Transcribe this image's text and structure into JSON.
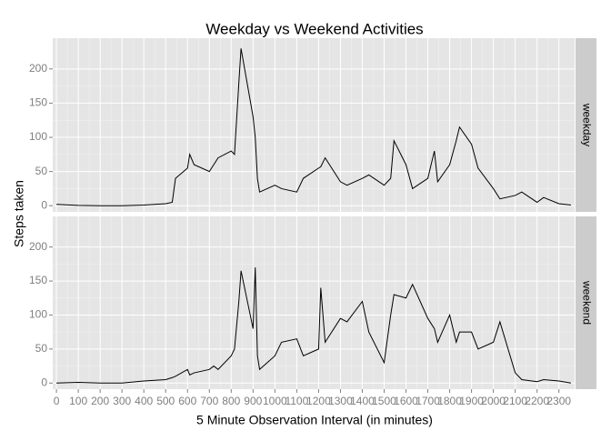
{
  "chart_data": {
    "type": "line",
    "title": "Weekday vs Weekend Activities",
    "xlabel": "5 Minute Observation Interval (in minutes)",
    "ylabel": "Steps taken",
    "facet": true,
    "grid": true,
    "x": [
      0,
      100,
      200,
      300,
      400,
      500,
      530,
      545,
      600,
      610,
      630,
      700,
      720,
      740,
      800,
      815,
      835,
      845,
      900,
      910,
      920,
      930,
      1000,
      1030,
      1100,
      1130,
      1200,
      1210,
      1230,
      1300,
      1330,
      1400,
      1430,
      1500,
      1530,
      1545,
      1600,
      1630,
      1700,
      1730,
      1745,
      1800,
      1830,
      1845,
      1900,
      1930,
      2000,
      2030,
      2100,
      2130,
      2200,
      2230,
      2300,
      2355
    ],
    "series": [
      {
        "name": "weekday",
        "color": "#000000",
        "values": [
          2,
          0.5,
          0,
          0,
          1,
          3,
          5,
          40,
          55,
          75,
          60,
          50,
          60,
          70,
          80,
          75,
          180,
          230,
          130,
          100,
          40,
          20,
          30,
          25,
          20,
          40,
          55,
          57,
          70,
          35,
          30,
          40,
          45,
          30,
          40,
          95,
          60,
          25,
          40,
          80,
          35,
          60,
          95,
          115,
          90,
          55,
          25,
          10,
          15,
          20,
          5,
          12,
          3,
          1
        ]
      },
      {
        "name": "weekend",
        "color": "#000000",
        "values": [
          0,
          1,
          0,
          0,
          3,
          5,
          8,
          10,
          20,
          12,
          15,
          20,
          25,
          20,
          40,
          50,
          120,
          165,
          80,
          170,
          40,
          20,
          40,
          60,
          65,
          40,
          50,
          140,
          60,
          95,
          90,
          120,
          75,
          30,
          100,
          130,
          125,
          145,
          95,
          80,
          60,
          100,
          60,
          75,
          75,
          50,
          60,
          90,
          15,
          5,
          2,
          5,
          3,
          0
        ]
      }
    ],
    "xlim": [
      -17,
      2372
    ],
    "xticks": [
      0,
      100,
      200,
      300,
      400,
      500,
      600,
      700,
      800,
      900,
      1000,
      1100,
      1200,
      1300,
      1400,
      1500,
      1600,
      1700,
      1800,
      1900,
      2000,
      2100,
      2200,
      2300
    ],
    "ylim": [
      -9,
      245
    ],
    "yticks": [
      0,
      50,
      100,
      150,
      200
    ]
  }
}
